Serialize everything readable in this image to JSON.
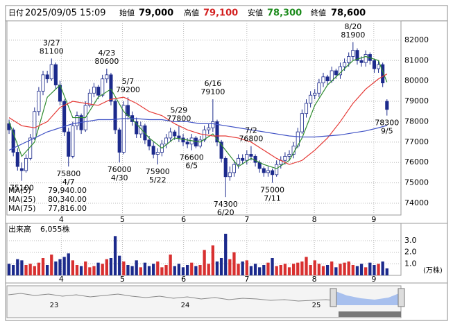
{
  "header": {
    "date_label": "日付",
    "datetime": "2025/09/05 15:09",
    "open_label": "始値",
    "open": "79,000",
    "high_label": "高値",
    "high": "79,100",
    "low_label": "安値",
    "low": "78,300",
    "close_label": "終値",
    "close": "78,600"
  },
  "chart_data": [
    {
      "type": "candlestick",
      "ylim": [
        73420,
        82950
      ],
      "yticks": [
        74000,
        75000,
        76000,
        77000,
        78000,
        79000,
        80000,
        81000,
        82000
      ],
      "xlim": [
        -0.5,
        92.3
      ],
      "xticks": [
        {
          "value": 12.3,
          "label": "4"
        },
        {
          "value": 26.7,
          "label": "5"
        },
        {
          "value": 41.1,
          "label": "6"
        },
        {
          "value": 56,
          "label": "7"
        },
        {
          "value": 71.9,
          "label": "8"
        },
        {
          "value": 85.9,
          "label": "9"
        }
      ],
      "grid": true,
      "up_color": "#ffffff",
      "down_color": "#1c2a8c",
      "edge_color": "#1c2a8c",
      "candles": [
        [
          77900,
          78100,
          77400,
          77600
        ],
        [
          77600,
          77700,
          76300,
          76500
        ],
        [
          76500,
          76700,
          75600,
          75800
        ],
        [
          75700,
          76000,
          75100,
          75600
        ],
        [
          75600,
          76400,
          75500,
          76200
        ],
        [
          76200,
          77400,
          76100,
          77200
        ],
        [
          77200,
          78700,
          77100,
          78500
        ],
        [
          78500,
          79700,
          78300,
          79500
        ],
        [
          79500,
          80500,
          79300,
          80300
        ],
        [
          80300,
          80500,
          79900,
          80100
        ],
        [
          80100,
          81100,
          80000,
          80800
        ],
        [
          80800,
          80900,
          79600,
          79800
        ],
        [
          79800,
          80000,
          78800,
          79000
        ],
        [
          79000,
          79100,
          77300,
          77500
        ],
        [
          77500,
          77700,
          75800,
          76300
        ],
        [
          76300,
          78000,
          76200,
          77800
        ],
        [
          77800,
          78500,
          77600,
          78300
        ],
        [
          78300,
          78400,
          77400,
          77600
        ],
        [
          77600,
          79000,
          77500,
          78800
        ],
        [
          78800,
          79600,
          78700,
          79400
        ],
        [
          79400,
          79900,
          79200,
          79700
        ],
        [
          79700,
          79800,
          79100,
          79300
        ],
        [
          79300,
          80300,
          79200,
          80100
        ],
        [
          80100,
          80600,
          79900,
          80300
        ],
        [
          80300,
          80400,
          78800,
          79000
        ],
        [
          79000,
          79100,
          77400,
          77600
        ],
        [
          77600,
          77700,
          76000,
          76500
        ],
        [
          76500,
          79000,
          76400,
          78800
        ],
        [
          78800,
          79200,
          78100,
          78300
        ],
        [
          78300,
          78500,
          77800,
          78000
        ],
        [
          78000,
          78200,
          77200,
          77400
        ],
        [
          77400,
          78000,
          77200,
          77800
        ],
        [
          77800,
          77900,
          76900,
          77100
        ],
        [
          77100,
          77300,
          76600,
          76800
        ],
        [
          76800,
          77000,
          76200,
          76400
        ],
        [
          76400,
          76700,
          75900,
          76500
        ],
        [
          76500,
          77100,
          76300,
          76900
        ],
        [
          76900,
          77400,
          76700,
          77200
        ],
        [
          77200,
          77700,
          77000,
          77500
        ],
        [
          77500,
          77600,
          77100,
          77300
        ],
        [
          77300,
          77800,
          77000,
          77200
        ],
        [
          77200,
          77400,
          76800,
          77000
        ],
        [
          77000,
          77200,
          76700,
          76900
        ],
        [
          76900,
          77400,
          76600,
          77200
        ],
        [
          77200,
          77300,
          76700,
          76800
        ],
        [
          76800,
          77300,
          76700,
          77100
        ],
        [
          77100,
          77800,
          77000,
          77600
        ],
        [
          77600,
          77900,
          77400,
          77700
        ],
        [
          77700,
          79100,
          77500,
          78000
        ],
        [
          78000,
          78100,
          76800,
          77000
        ],
        [
          77000,
          77100,
          76000,
          76200
        ],
        [
          76200,
          76300,
          74300,
          75300
        ],
        [
          75300,
          75800,
          75100,
          75500
        ],
        [
          75500,
          76100,
          75300,
          75900
        ],
        [
          75900,
          76400,
          75700,
          76200
        ],
        [
          76200,
          76400,
          75900,
          76100
        ],
        [
          76100,
          76600,
          75900,
          76400
        ],
        [
          76400,
          76800,
          76100,
          76300
        ],
        [
          76300,
          76400,
          75800,
          76000
        ],
        [
          76000,
          76100,
          75500,
          75700
        ],
        [
          75700,
          75800,
          75300,
          75500
        ],
        [
          75500,
          75800,
          75300,
          75600
        ],
        [
          75600,
          75700,
          75000,
          75400
        ],
        [
          75400,
          76100,
          75300,
          75900
        ],
        [
          75900,
          76300,
          75700,
          76100
        ],
        [
          76100,
          76500,
          75900,
          76300
        ],
        [
          76300,
          76600,
          76100,
          76400
        ],
        [
          76400,
          77000,
          76200,
          76800
        ],
        [
          76800,
          77700,
          76700,
          77500
        ],
        [
          77500,
          78600,
          77400,
          78400
        ],
        [
          78400,
          79100,
          78200,
          78900
        ],
        [
          78900,
          79500,
          78700,
          79300
        ],
        [
          79300,
          79600,
          79100,
          79400
        ],
        [
          79400,
          80100,
          79200,
          79900
        ],
        [
          79900,
          80400,
          79700,
          80200
        ],
        [
          80200,
          80300,
          79800,
          80000
        ],
        [
          80000,
          80700,
          79900,
          80500
        ],
        [
          80500,
          80600,
          80100,
          80300
        ],
        [
          80300,
          80900,
          80100,
          80700
        ],
        [
          80700,
          81100,
          80500,
          80900
        ],
        [
          80900,
          81400,
          80700,
          81200
        ],
        [
          81200,
          81900,
          81000,
          81500
        ],
        [
          81500,
          81600,
          80800,
          81000
        ],
        [
          81000,
          81200,
          80700,
          80900
        ],
        [
          80900,
          81500,
          80700,
          81300
        ],
        [
          81300,
          81400,
          80800,
          81000
        ],
        [
          81000,
          81100,
          80400,
          80600
        ],
        [
          80600,
          81000,
          80400,
          80800
        ],
        [
          80800,
          80900,
          79700,
          79900
        ],
        [
          79000,
          79100,
          78300,
          78600
        ]
      ],
      "series": [
        {
          "name": "MA(5)",
          "color": "#2e8b2e",
          "legend_value": 79940,
          "legend_label": "79,940.00",
          "x": [
            0,
            3,
            6,
            9,
            12,
            15,
            18,
            21,
            24,
            27,
            30,
            33,
            36,
            39,
            42,
            45,
            48,
            51,
            54,
            57,
            60,
            63,
            66,
            69,
            72,
            75,
            78,
            81,
            84,
            87,
            89
          ],
          "values": [
            78000,
            76300,
            77000,
            79200,
            79800,
            78200,
            78200,
            79200,
            79600,
            78500,
            77900,
            77200,
            76700,
            77200,
            77100,
            77000,
            77400,
            76600,
            75800,
            76200,
            75900,
            75700,
            76100,
            77200,
            78800,
            79800,
            80400,
            81000,
            81200,
            81000,
            79940
          ]
        },
        {
          "name": "MA(25)",
          "color": "#e53935",
          "legend_value": 80340,
          "legend_label": "80,340.00",
          "x": [
            0,
            3,
            6,
            9,
            12,
            15,
            18,
            21,
            24,
            27,
            30,
            33,
            36,
            39,
            42,
            45,
            48,
            51,
            54,
            57,
            60,
            63,
            66,
            69,
            72,
            75,
            78,
            81,
            84,
            87,
            89
          ],
          "values": [
            78200,
            77800,
            77700,
            78000,
            78700,
            79000,
            78900,
            78800,
            79100,
            79200,
            78900,
            78500,
            78300,
            77900,
            77600,
            77400,
            77300,
            77300,
            77200,
            77000,
            76600,
            76200,
            75900,
            76100,
            76600,
            77200,
            78000,
            78900,
            79600,
            80100,
            80340
          ]
        },
        {
          "name": "MA(75)",
          "color": "#3f51c5",
          "legend_value": 77816,
          "legend_label": "77,816.00",
          "x": [
            0,
            3,
            6,
            9,
            12,
            15,
            18,
            21,
            24,
            27,
            30,
            33,
            36,
            39,
            42,
            45,
            48,
            51,
            54,
            57,
            60,
            63,
            66,
            69,
            72,
            75,
            78,
            81,
            84,
            87,
            89
          ],
          "values": [
            76600,
            76900,
            77200,
            77500,
            77700,
            77900,
            78000,
            78100,
            78100,
            78150,
            78150,
            78100,
            78100,
            78000,
            78000,
            77900,
            77900,
            77800,
            77700,
            77600,
            77500,
            77400,
            77300,
            77250,
            77250,
            77300,
            77350,
            77450,
            77550,
            77700,
            77816
          ]
        }
      ],
      "annotations": [
        {
          "at": 3,
          "value": 75100
        },
        {
          "at": 10,
          "date": "3/27",
          "value": 81100
        },
        {
          "at": 14,
          "date": "4/7",
          "value": 75800
        },
        {
          "at": 23,
          "date": "4/23",
          "value": 80600
        },
        {
          "at": 26,
          "date": "4/30",
          "value": 76000
        },
        {
          "at": 28,
          "date": "5/7",
          "value": 79200
        },
        {
          "at": 35,
          "date": "5/22",
          "value": 75900
        },
        {
          "at": 40,
          "date": "5/29",
          "value": 77800
        },
        {
          "at": 43,
          "date": "6/5",
          "value": 76600
        },
        {
          "at": 48,
          "date": "6/16",
          "value": 79100
        },
        {
          "at": 51,
          "date": "6/20",
          "value": 74300
        },
        {
          "at": 57,
          "date": "7/2",
          "value": 76800
        },
        {
          "at": 62,
          "date": "7/11",
          "value": 75000
        },
        {
          "at": 81,
          "date": "8/20",
          "value": 81900
        },
        {
          "at": 89,
          "date": "9/5",
          "value": 78300
        }
      ]
    },
    {
      "type": "bar",
      "title": "出来高",
      "last_label": "6,055株",
      "unit": "(万株)",
      "ylim": [
        0,
        4.5
      ],
      "yticks": [
        {
          "value": 1,
          "label": "1.0"
        },
        {
          "value": 2,
          "label": "2.0"
        },
        {
          "value": 3,
          "label": "3.0"
        }
      ],
      "up_color": "#d83030",
      "down_color": "#1c2a8c",
      "values": [
        1.0,
        0.9,
        1.4,
        1.3,
        0.9,
        1.0,
        0.8,
        1.1,
        1.5,
        0.9,
        1.8,
        1.2,
        1.4,
        1.6,
        1.9,
        1.3,
        0.9,
        0.8,
        1.2,
        0.7,
        0.8,
        1.1,
        1.0,
        1.4,
        1.5,
        3.4,
        1.7,
        1.2,
        0.9,
        0.8,
        1.3,
        0.7,
        1.1,
        0.8,
        1.0,
        1.2,
        0.7,
        0.9,
        1.8,
        0.8,
        1.0,
        0.7,
        0.9,
        1.1,
        0.8,
        0.9,
        2.2,
        1.0,
        2.6,
        1.2,
        1.5,
        3.6,
        1.4,
        2.0,
        1.0,
        1.2,
        1.3,
        0.8,
        1.0,
        0.7,
        0.9,
        1.1,
        1.5,
        0.8,
        0.9,
        1.0,
        0.7,
        1.0,
        1.1,
        1.2,
        1.6,
        0.9,
        1.3,
        1.0,
        0.8,
        0.9,
        1.2,
        0.7,
        1.0,
        1.1,
        1.2,
        0.9,
        0.8,
        1.0,
        0.7,
        1.1,
        0.9,
        1.0,
        1.2,
        0.6055
      ]
    }
  ],
  "navigator": {
    "labels": [
      "23",
      "24",
      "25"
    ]
  }
}
